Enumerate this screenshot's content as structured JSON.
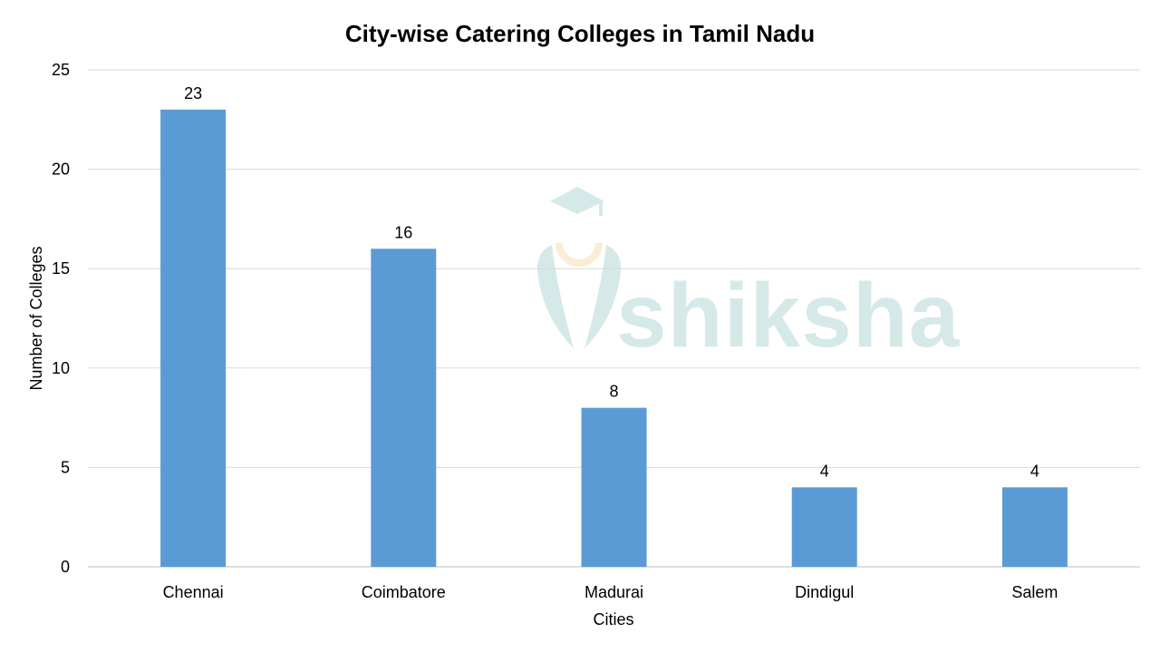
{
  "chart_data": {
    "type": "bar",
    "title": "City-wise Catering Colleges in Tamil Nadu",
    "xlabel": "Cities",
    "ylabel": "Number of Colleges",
    "categories": [
      "Chennai",
      "Coimbatore",
      "Madurai",
      "Dindigul",
      "Salem"
    ],
    "values": [
      23,
      16,
      8,
      4,
      4
    ],
    "ylim": [
      0,
      25
    ],
    "yticks": [
      0,
      5,
      10,
      15,
      20,
      25
    ],
    "grid": true,
    "bar_color": "#5b9bd5",
    "data_labels": true
  },
  "watermark": {
    "text": "shiksha",
    "color": "#8cc3c3",
    "accent_color": "#f5c98a"
  }
}
